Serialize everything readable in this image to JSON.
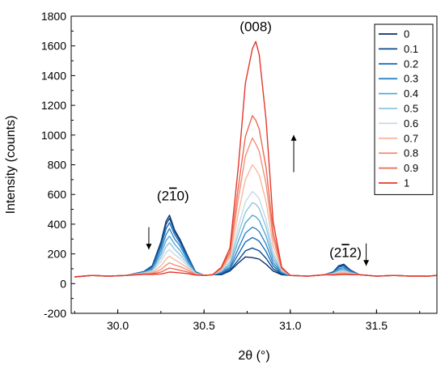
{
  "chart_data": {
    "type": "line",
    "xlabel": "2θ (°)",
    "ylabel": "Intensity (counts)",
    "xlim": [
      29.73,
      31.85
    ],
    "ylim": [
      -200,
      1800
    ],
    "x_ticks": [
      30.0,
      30.5,
      31.0,
      31.5
    ],
    "x_tick_labels": [
      "30.0",
      "30.5",
      "31.0",
      "31.5"
    ],
    "y_ticks": [
      -200,
      0,
      200,
      400,
      600,
      800,
      1000,
      1200,
      1400,
      1600,
      1800
    ],
    "y_tick_labels": [
      "-200",
      "0",
      "200",
      "400",
      "600",
      "800",
      "1000",
      "1200",
      "1400",
      "1600",
      "1800"
    ],
    "grid": false,
    "legend_position": "top-right",
    "colors": [
      "#08306b",
      "#0a4a8f",
      "#1f6fb4",
      "#2f86c6",
      "#55a8d6",
      "#8fc7e2",
      "#c9d9e6",
      "#f7b99e",
      "#f2917a",
      "#ec6b52",
      "#e2382c"
    ],
    "x": [
      29.75,
      29.85,
      29.95,
      30.05,
      30.15,
      30.2,
      30.25,
      30.28,
      30.3,
      30.33,
      30.36,
      30.4,
      30.45,
      30.5,
      30.55,
      30.6,
      30.65,
      30.7,
      30.74,
      30.78,
      30.8,
      30.82,
      30.86,
      30.9,
      30.95,
      31.0,
      31.1,
      31.2,
      31.25,
      31.28,
      31.31,
      31.35,
      31.4,
      31.5,
      31.6,
      31.7,
      31.8,
      31.85
    ],
    "series": [
      {
        "name": "0",
        "values": [
          45,
          55,
          50,
          55,
          80,
          120,
          280,
          420,
          460,
          360,
          300,
          200,
          80,
          55,
          60,
          60,
          85,
          140,
          180,
          175,
          170,
          165,
          130,
          85,
          60,
          55,
          50,
          60,
          80,
          120,
          130,
          90,
          60,
          50,
          55,
          50,
          50,
          55
        ]
      },
      {
        "name": "0.1",
        "values": [
          45,
          55,
          50,
          55,
          80,
          115,
          270,
          400,
          440,
          350,
          290,
          195,
          80,
          55,
          60,
          65,
          90,
          160,
          220,
          240,
          230,
          220,
          170,
          100,
          65,
          55,
          50,
          60,
          78,
          115,
          125,
          88,
          60,
          50,
          55,
          50,
          50,
          55
        ]
      },
      {
        "name": "0.2",
        "values": [
          45,
          55,
          50,
          55,
          78,
          110,
          250,
          370,
          410,
          330,
          275,
          185,
          78,
          55,
          60,
          70,
          100,
          200,
          280,
          310,
          300,
          285,
          215,
          120,
          70,
          55,
          50,
          60,
          75,
          110,
          118,
          85,
          60,
          50,
          55,
          50,
          50,
          55
        ]
      },
      {
        "name": "0.3",
        "values": [
          45,
          55,
          50,
          55,
          76,
          100,
          225,
          330,
          370,
          300,
          255,
          170,
          75,
          55,
          60,
          75,
          110,
          240,
          340,
          380,
          370,
          350,
          265,
          140,
          75,
          55,
          50,
          60,
          72,
          100,
          108,
          80,
          60,
          50,
          55,
          50,
          50,
          55
        ]
      },
      {
        "name": "0.4",
        "values": [
          45,
          55,
          50,
          55,
          74,
          95,
          200,
          290,
          320,
          265,
          225,
          155,
          72,
          55,
          60,
          80,
          125,
          290,
          410,
          460,
          450,
          425,
          320,
          165,
          80,
          55,
          50,
          60,
          70,
          92,
          98,
          76,
          60,
          50,
          55,
          50,
          50,
          55
        ]
      },
      {
        "name": "0.5",
        "values": [
          45,
          55,
          50,
          55,
          72,
          88,
          175,
          250,
          275,
          230,
          195,
          140,
          70,
          55,
          60,
          85,
          140,
          340,
          480,
          545,
          535,
          505,
          380,
          190,
          85,
          55,
          50,
          60,
          68,
          85,
          90,
          72,
          60,
          50,
          55,
          50,
          50,
          55
        ]
      },
      {
        "name": "0.6",
        "values": [
          45,
          55,
          50,
          55,
          70,
          82,
          150,
          210,
          230,
          195,
          170,
          125,
          68,
          55,
          60,
          90,
          155,
          390,
          550,
          620,
          600,
          570,
          430,
          215,
          90,
          55,
          50,
          60,
          66,
          78,
          82,
          70,
          60,
          50,
          55,
          50,
          50,
          55
        ]
      },
      {
        "name": "0.7",
        "values": [
          45,
          55,
          50,
          55,
          68,
          75,
          120,
          165,
          185,
          160,
          140,
          110,
          65,
          55,
          60,
          95,
          175,
          480,
          700,
          800,
          770,
          730,
          550,
          260,
          95,
          55,
          50,
          60,
          64,
          72,
          75,
          68,
          60,
          50,
          55,
          50,
          50,
          55
        ]
      },
      {
        "name": "0.8",
        "values": [
          45,
          55,
          50,
          55,
          66,
          70,
          95,
          125,
          140,
          125,
          115,
          95,
          62,
          55,
          60,
          100,
          195,
          580,
          860,
          980,
          940,
          890,
          670,
          310,
          100,
          55,
          50,
          60,
          62,
          66,
          68,
          65,
          60,
          50,
          55,
          50,
          50,
          55
        ]
      },
      {
        "name": "0.9",
        "values": [
          45,
          55,
          50,
          55,
          64,
          66,
          78,
          95,
          105,
          98,
          90,
          80,
          60,
          55,
          60,
          105,
          215,
          660,
          990,
          1130,
          1100,
          1040,
          780,
          350,
          105,
          55,
          50,
          60,
          60,
          62,
          64,
          62,
          60,
          50,
          55,
          50,
          50,
          55
        ]
      },
      {
        "name": "1",
        "values": [
          45,
          55,
          50,
          55,
          62,
          62,
          65,
          72,
          78,
          76,
          72,
          68,
          58,
          55,
          60,
          110,
          240,
          800,
          1350,
          1580,
          1630,
          1540,
          1100,
          420,
          110,
          55,
          50,
          60,
          58,
          60,
          62,
          60,
          60,
          50,
          55,
          50,
          50,
          55
        ]
      }
    ],
    "annotations": [
      {
        "text": "(008)",
        "x": 30.8,
        "y": 1700
      },
      {
        "text": "(2",
        "overline": "1",
        "suffix": "0)",
        "x": 30.32,
        "y": 560
      },
      {
        "text": "(2",
        "overline": "1",
        "suffix": "2)",
        "x": 31.32,
        "y": 180
      },
      {
        "arrow": "down",
        "x": 30.18,
        "y_from": 380,
        "y_to": 230
      },
      {
        "arrow": "up",
        "x": 31.02,
        "y_from": 750,
        "y_to": 1000
      },
      {
        "arrow": "down",
        "x": 31.44,
        "y_from": 270,
        "y_to": 120
      }
    ]
  }
}
